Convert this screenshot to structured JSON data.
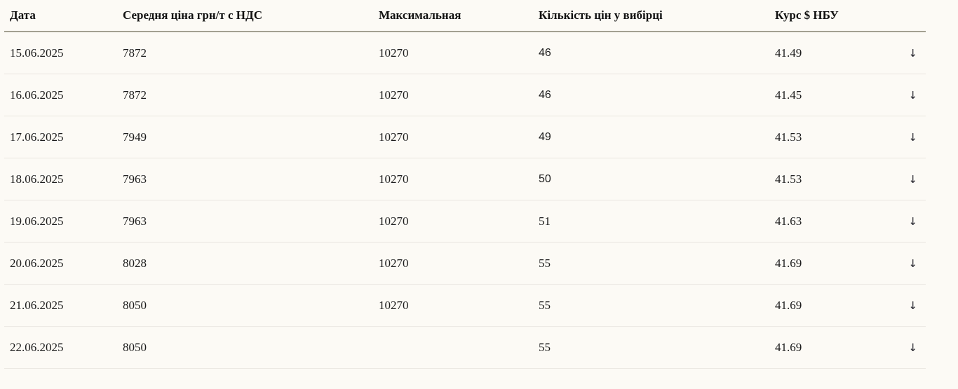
{
  "page": {
    "background_color": "#FCFAF5",
    "header_underline_color": "#A3A091",
    "row_divider_color": "#E9E6E0",
    "text_color": "#1B1B1B"
  },
  "table": {
    "headers": {
      "date": "Дата",
      "avg_price": "Середня ціна грн/т с НДС",
      "max_price": "Максимальная",
      "sample_count": "Кількість цін у вибірці",
      "usd_rate": "Курс $ НБУ"
    },
    "trend_down_glyph": "↓",
    "rows": [
      {
        "date": "15.06.2025",
        "avg_price": "7872",
        "max_price": "10270",
        "sample_count": "46",
        "usd_rate": "41.49",
        "trend": "down",
        "count_style": "sans"
      },
      {
        "date": "16.06.2025",
        "avg_price": "7872",
        "max_price": "10270",
        "sample_count": "46",
        "usd_rate": "41.45",
        "trend": "down",
        "count_style": "sans"
      },
      {
        "date": "17.06.2025",
        "avg_price": "7949",
        "max_price": "10270",
        "sample_count": "49",
        "usd_rate": "41.53",
        "trend": "down",
        "count_style": "sans"
      },
      {
        "date": "18.06.2025",
        "avg_price": "7963",
        "max_price": "10270",
        "sample_count": "50",
        "usd_rate": "41.53",
        "trend": "down",
        "count_style": "sans"
      },
      {
        "date": "19.06.2025",
        "avg_price": "7963",
        "max_price": "10270",
        "sample_count": "51",
        "usd_rate": "41.63",
        "trend": "down",
        "count_style": "serif"
      },
      {
        "date": "20.06.2025",
        "avg_price": "8028",
        "max_price": "10270",
        "sample_count": "55",
        "usd_rate": "41.69",
        "trend": "down",
        "count_style": "serif"
      },
      {
        "date": "21.06.2025",
        "avg_price": "8050",
        "max_price": "10270",
        "sample_count": "55",
        "usd_rate": "41.69",
        "trend": "down",
        "count_style": "serif"
      },
      {
        "date": "22.06.2025",
        "avg_price": "8050",
        "max_price": "",
        "sample_count": "55",
        "usd_rate": "41.69",
        "trend": "down",
        "count_style": "serif"
      }
    ]
  }
}
